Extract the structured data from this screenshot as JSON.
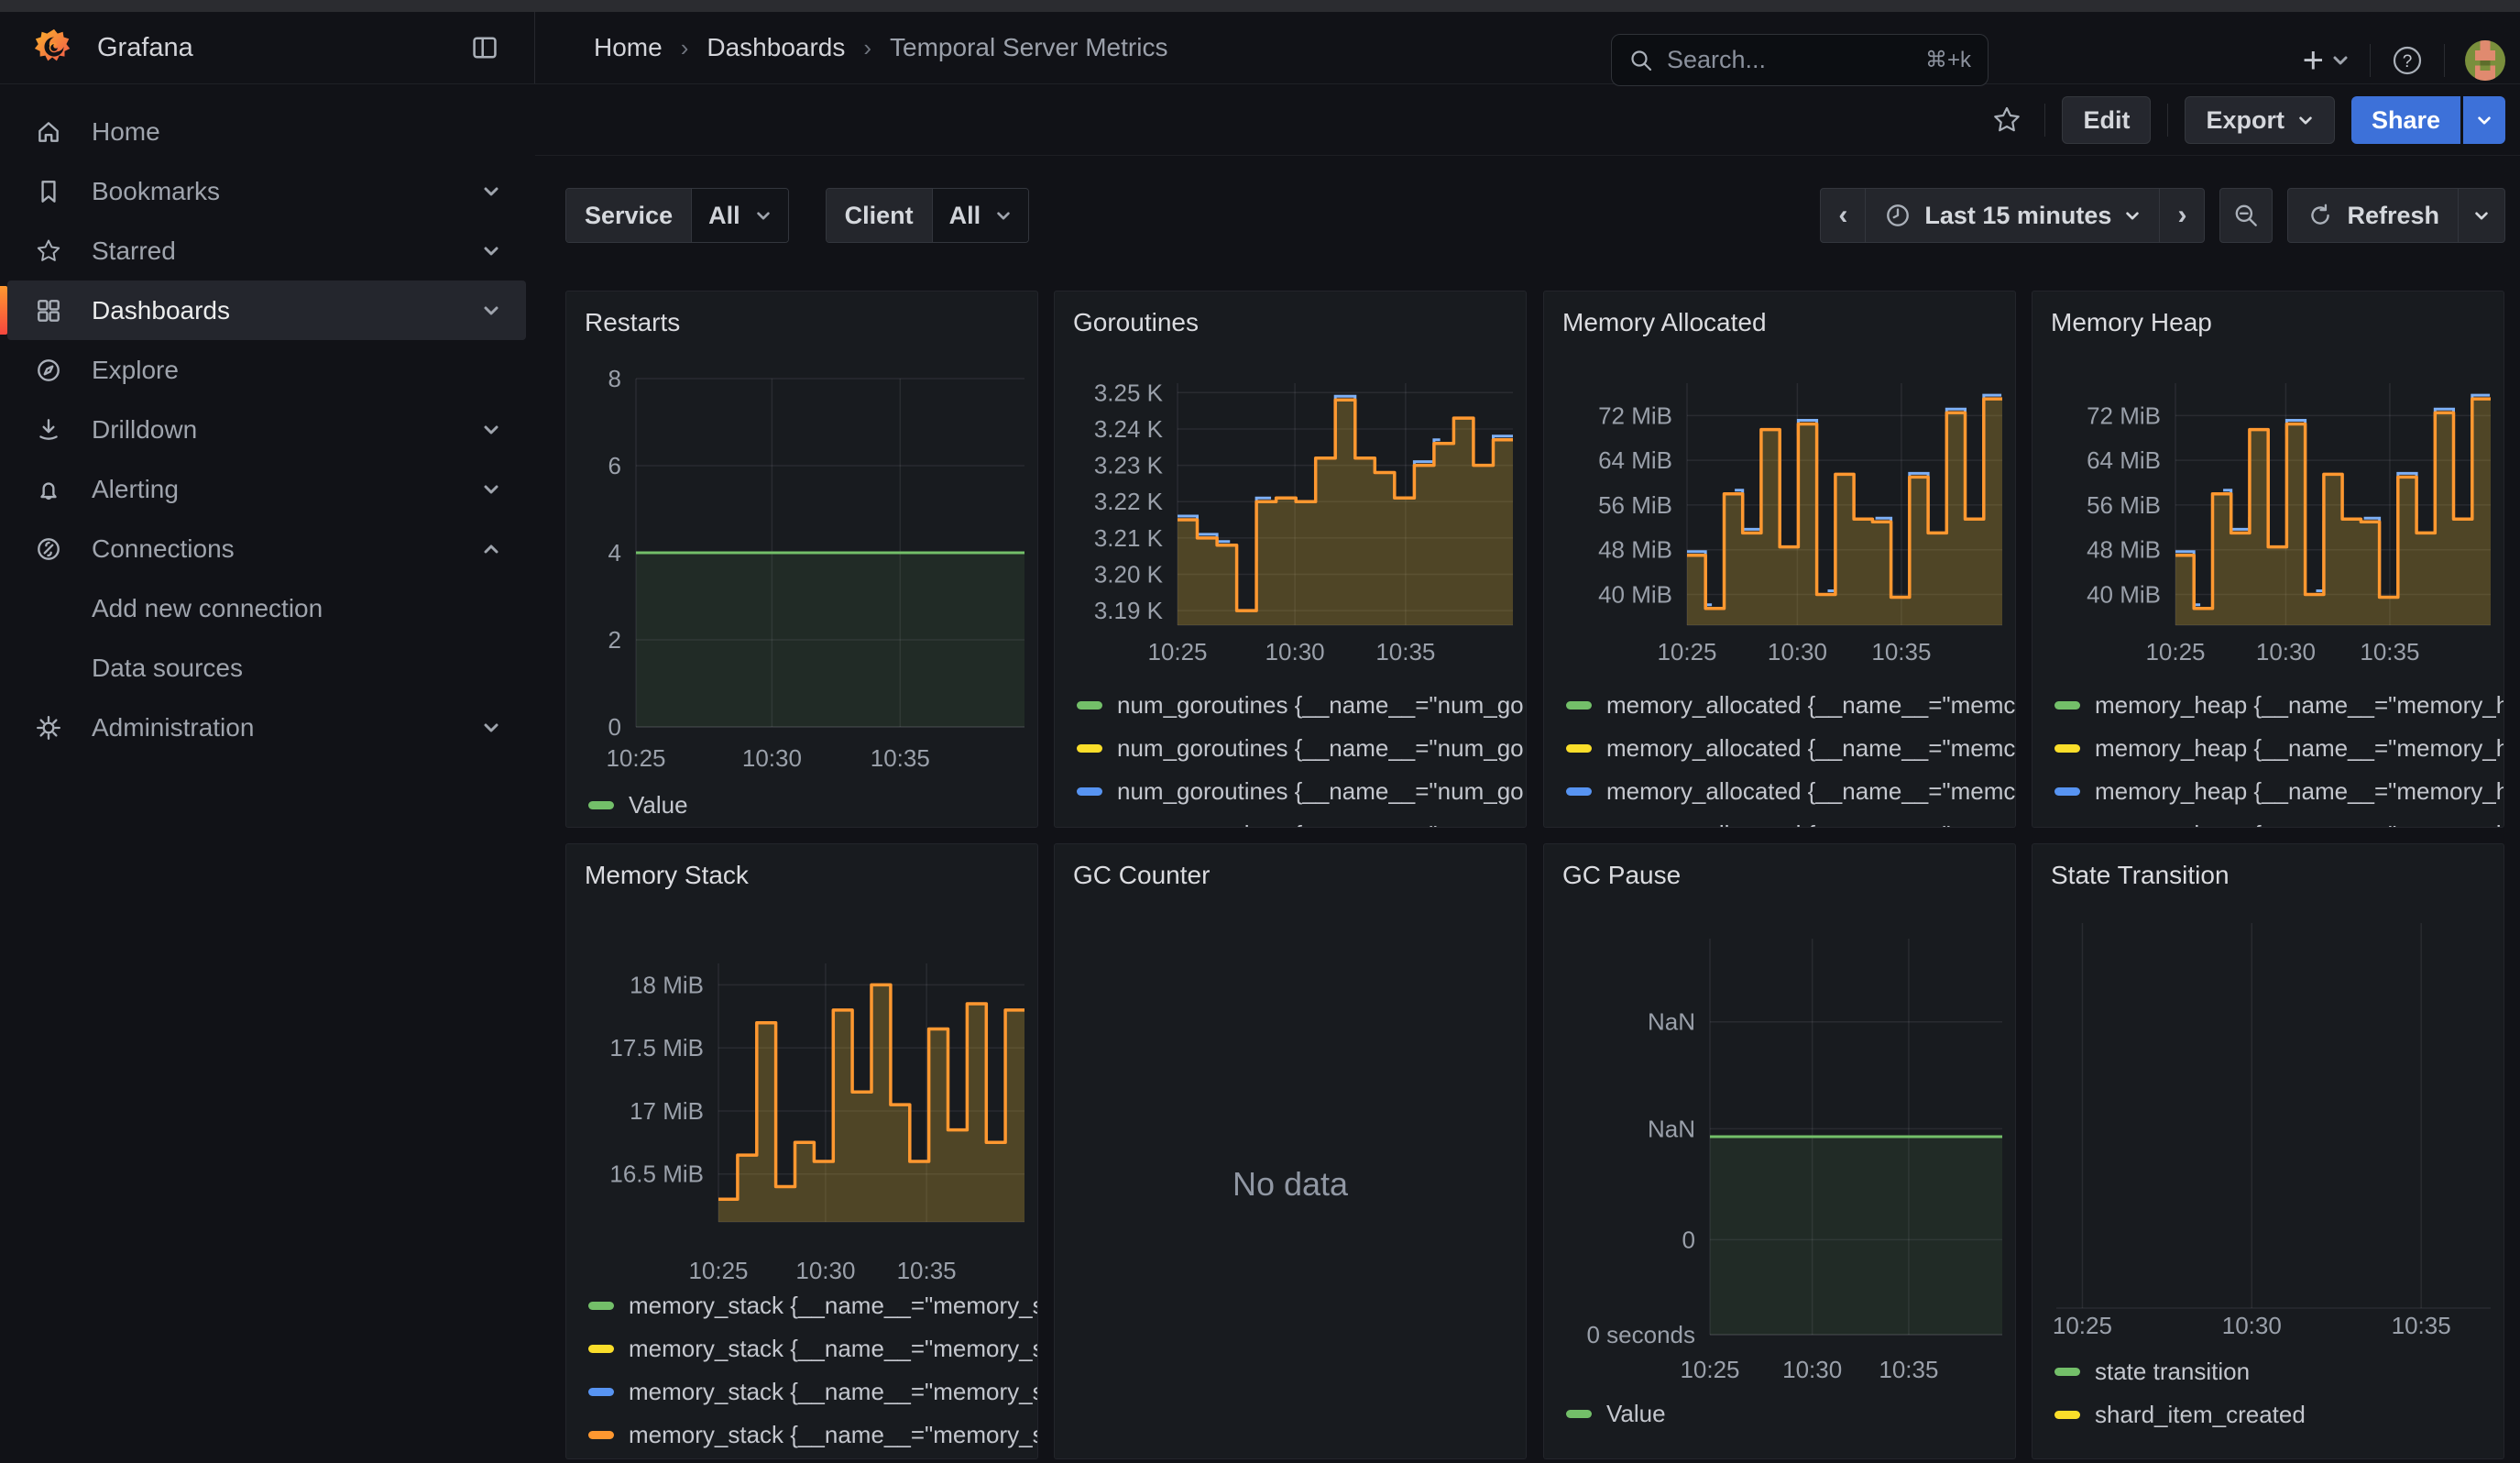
{
  "header": {
    "brand": "Grafana",
    "breadcrumb": [
      "Home",
      "Dashboards",
      "Temporal Server Metrics"
    ],
    "search": {
      "placeholder": "Search...",
      "shortcut": "⌘+k"
    }
  },
  "toolbar": {
    "edit_label": "Edit",
    "export_label": "Export",
    "share_label": "Share"
  },
  "sidebar": {
    "items": [
      {
        "label": "Home"
      },
      {
        "label": "Bookmarks"
      },
      {
        "label": "Starred"
      },
      {
        "label": "Dashboards"
      },
      {
        "label": "Explore"
      },
      {
        "label": "Drilldown"
      },
      {
        "label": "Alerting"
      },
      {
        "label": "Connections"
      },
      {
        "label": "Add new connection"
      },
      {
        "label": "Data sources"
      },
      {
        "label": "Administration"
      }
    ]
  },
  "filters": {
    "service_label": "Service",
    "service_value": "All",
    "client_label": "Client",
    "client_value": "All"
  },
  "timebar": {
    "range": "Last 15 minutes",
    "refresh_label": "Refresh"
  },
  "colors": {
    "green": "#73BF69",
    "yellow": "#FADE2A",
    "blue": "#5794F2",
    "orange": "#FF9830",
    "share_blue": "#3D71D9",
    "panel_bg": "#181b1f",
    "page_bg": "#111217"
  },
  "chart_data": [
    {
      "type": "line",
      "title": "Restarts",
      "ylim": [
        0,
        8
      ],
      "yticks": [
        {
          "v": 8,
          "label": "8"
        },
        {
          "v": 6,
          "label": "6"
        },
        {
          "v": 4,
          "label": "4"
        },
        {
          "v": 2,
          "label": "2"
        },
        {
          "v": 0,
          "label": "0"
        }
      ],
      "xticks": [
        {
          "f": 0,
          "label": "10:25"
        },
        {
          "f": 0.35,
          "label": "10:30"
        },
        {
          "f": 0.68,
          "label": "10:35"
        }
      ],
      "series": [
        {
          "name": "Value",
          "color": "#73BF69",
          "mode": "flat",
          "value": 4,
          "fill": "rgba(115,191,105,0.10)"
        }
      ],
      "legend": [
        {
          "color": "#73BF69",
          "label": "Value"
        }
      ]
    },
    {
      "type": "area-step",
      "title": "Goroutines",
      "ylim": [
        3186,
        3252.6
      ],
      "yticks": [
        {
          "v": 3250,
          "label": "3.25 K"
        },
        {
          "v": 3240,
          "label": "3.24 K"
        },
        {
          "v": 3230,
          "label": "3.23 K"
        },
        {
          "v": 3220,
          "label": "3.22 K"
        },
        {
          "v": 3210,
          "label": "3.21 K"
        },
        {
          "v": 3200,
          "label": "3.20 K"
        },
        {
          "v": 3190,
          "label": "3.19 K"
        }
      ],
      "xticks": [
        {
          "f": 0,
          "label": "10:25"
        },
        {
          "f": 0.35,
          "label": "10:30"
        },
        {
          "f": 0.68,
          "label": "10:35"
        }
      ],
      "series": [
        {
          "name": "num_goroutines",
          "color": "#FF9830",
          "mode": "steps",
          "fill": "rgba(222,180,56,0.28)",
          "echo": "#7EB0F5",
          "values": [
            3215,
            3210,
            3208,
            3190,
            3220,
            3221,
            3220,
            3232,
            3248,
            3232,
            3228,
            3221,
            3230,
            3236,
            3243,
            3230,
            3237
          ]
        }
      ],
      "legend": [
        {
          "color": "#73BF69",
          "label": "num_goroutines {__name__=\"num_go"
        },
        {
          "color": "#FADE2A",
          "label": "num_goroutines {__name__=\"num_go"
        },
        {
          "color": "#5794F2",
          "label": "num_goroutines {__name__=\"num_go"
        },
        {
          "color": "#FF9830",
          "label": "num_goroutines {__name__=\"num_go"
        }
      ]
    },
    {
      "type": "area-step",
      "title": "Memory Allocated",
      "ylim": [
        34.5,
        77.8
      ],
      "yticks": [
        {
          "v": 72,
          "label": "72 MiB"
        },
        {
          "v": 64,
          "label": "64 MiB"
        },
        {
          "v": 56,
          "label": "56 MiB"
        },
        {
          "v": 48,
          "label": "48 MiB"
        },
        {
          "v": 40,
          "label": "40 MiB"
        }
      ],
      "xticks": [
        {
          "f": 0,
          "label": "10:25"
        },
        {
          "f": 0.35,
          "label": "10:30"
        },
        {
          "f": 0.68,
          "label": "10:35"
        }
      ],
      "series": [
        {
          "name": "memory_allocated",
          "color": "#FF9830",
          "mode": "steps",
          "fill": "rgba(222,180,56,0.28)",
          "echo": "#7EB0F5",
          "values": [
            47,
            37.5,
            58,
            51,
            69.5,
            48.5,
            70.5,
            40,
            61.5,
            53.5,
            53,
            39.5,
            61,
            51,
            72.5,
            53.5,
            75
          ]
        }
      ],
      "legend": [
        {
          "color": "#73BF69",
          "label": "memory_allocated {__name__=\"memc"
        },
        {
          "color": "#FADE2A",
          "label": "memory_allocated {__name__=\"memc"
        },
        {
          "color": "#5794F2",
          "label": "memory_allocated {__name__=\"memc"
        },
        {
          "color": "#FF9830",
          "label": "memory_allocated {__name__=\"memc"
        }
      ]
    },
    {
      "type": "area-step",
      "title": "Memory Heap",
      "ylim": [
        34.5,
        77.8
      ],
      "yticks": [
        {
          "v": 72,
          "label": "72 MiB"
        },
        {
          "v": 64,
          "label": "64 MiB"
        },
        {
          "v": 56,
          "label": "56 MiB"
        },
        {
          "v": 48,
          "label": "48 MiB"
        },
        {
          "v": 40,
          "label": "40 MiB"
        }
      ],
      "xticks": [
        {
          "f": 0,
          "label": "10:25"
        },
        {
          "f": 0.35,
          "label": "10:30"
        },
        {
          "f": 0.68,
          "label": "10:35"
        }
      ],
      "series": [
        {
          "name": "memory_heap",
          "color": "#FF9830",
          "mode": "steps",
          "fill": "rgba(222,180,56,0.28)",
          "echo": "#7EB0F5",
          "values": [
            47,
            37.5,
            58,
            51,
            69.5,
            48.5,
            70.5,
            40,
            61.5,
            53.5,
            53,
            39.5,
            61,
            51,
            72.5,
            53.5,
            75
          ]
        }
      ],
      "legend": [
        {
          "color": "#73BF69",
          "label": "memory_heap {__name__=\"memory_h"
        },
        {
          "color": "#FADE2A",
          "label": "memory_heap {__name__=\"memory_h"
        },
        {
          "color": "#5794F2",
          "label": "memory_heap {__name__=\"memory_h"
        },
        {
          "color": "#FF9830",
          "label": "memory_heap {__name__=\"memory_h"
        }
      ]
    },
    {
      "type": "area-step",
      "title": "Memory Stack",
      "ylim": [
        16.12,
        18.17
      ],
      "yticks": [
        {
          "v": 18,
          "label": "18 MiB"
        },
        {
          "v": 17.5,
          "label": "17.5 MiB"
        },
        {
          "v": 17,
          "label": "17 MiB"
        },
        {
          "v": 16.5,
          "label": "16.5 MiB"
        }
      ],
      "xticks": [
        {
          "f": 0,
          "label": "10:25"
        },
        {
          "f": 0.35,
          "label": "10:30"
        },
        {
          "f": 0.68,
          "label": "10:35"
        }
      ],
      "series": [
        {
          "name": "memory_stack",
          "color": "#FF9830",
          "mode": "steps",
          "fill": "rgba(222,180,56,0.28)",
          "values": [
            16.3,
            16.65,
            17.7,
            16.4,
            16.75,
            16.6,
            17.8,
            17.15,
            18.0,
            17.05,
            16.6,
            17.65,
            16.85,
            17.85,
            16.75,
            17.8
          ]
        }
      ],
      "legend": [
        {
          "color": "#73BF69",
          "label": "memory_stack {__name__=\"memory_s"
        },
        {
          "color": "#FADE2A",
          "label": "memory_stack {__name__=\"memory_s"
        },
        {
          "color": "#5794F2",
          "label": "memory_stack {__name__=\"memory_s"
        },
        {
          "color": "#FF9830",
          "label": "memory_stack {__name__=\"memory_s"
        }
      ]
    },
    {
      "type": "nodata",
      "title": "GC Counter",
      "message": "No data"
    },
    {
      "type": "line",
      "title": "GC Pause",
      "ylim": [
        0,
        1
      ],
      "yticks": [
        {
          "v": 0.79,
          "label": "NaN"
        },
        {
          "v": 0.52,
          "label": "NaN"
        },
        {
          "v": 0.24,
          "label": "0"
        },
        {
          "v": 0,
          "label": "0 seconds"
        }
      ],
      "xticks": [
        {
          "f": 0,
          "label": "10:25"
        },
        {
          "f": 0.35,
          "label": "10:30"
        },
        {
          "f": 0.68,
          "label": "10:35"
        }
      ],
      "series": [
        {
          "name": "Value",
          "color": "#73BF69",
          "mode": "flat",
          "value": 0.5,
          "fill": "rgba(115,191,105,0.10)"
        }
      ],
      "legend": [
        {
          "color": "#73BF69",
          "label": "Value"
        }
      ]
    },
    {
      "type": "empty",
      "title": "State Transition",
      "yticks": [],
      "xticks": [
        {
          "f": 0.06,
          "label": "10:25"
        },
        {
          "f": 0.45,
          "label": "10:30"
        },
        {
          "f": 0.84,
          "label": "10:35"
        }
      ],
      "series": [],
      "legend": [
        {
          "color": "#73BF69",
          "label": "state transition"
        },
        {
          "color": "#FADE2A",
          "label": "shard_item_created"
        }
      ]
    }
  ]
}
